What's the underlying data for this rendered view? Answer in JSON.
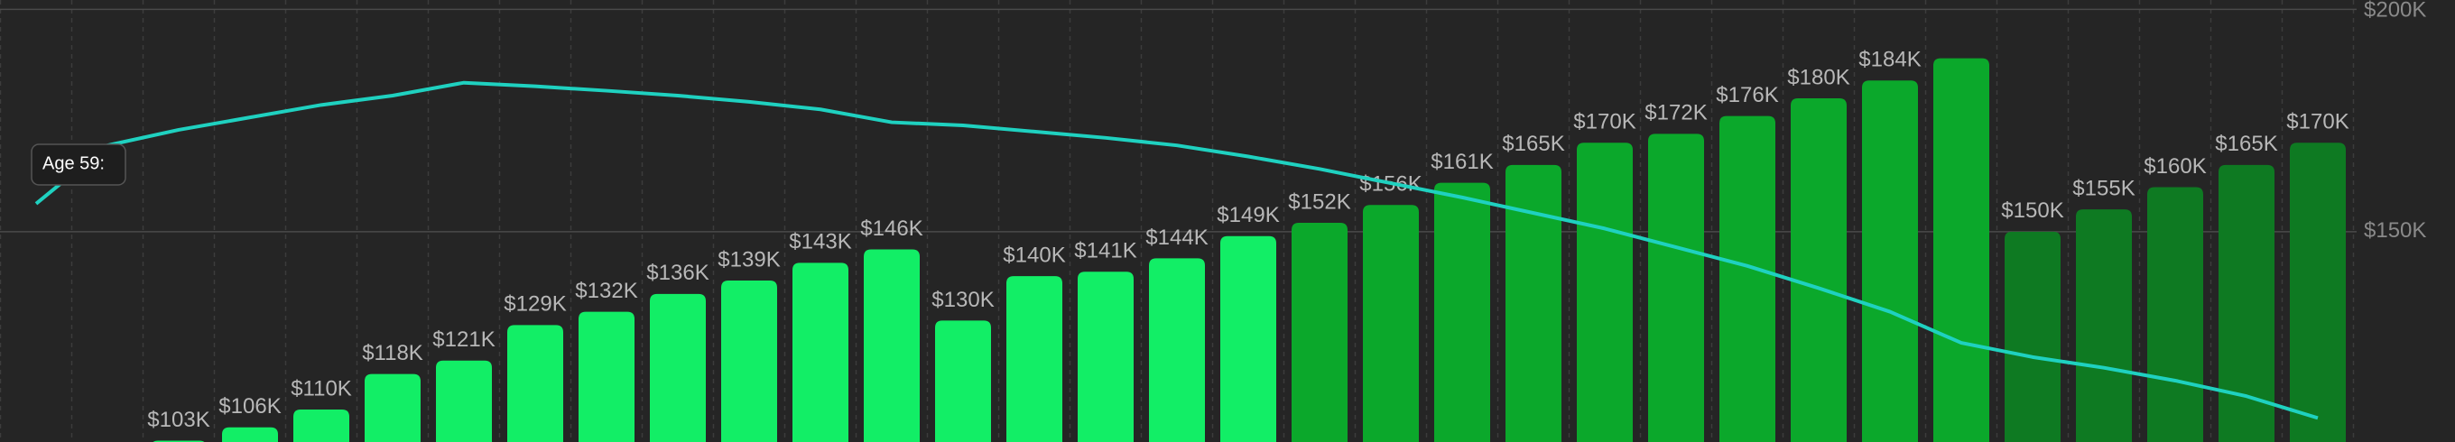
{
  "chart_data": {
    "type": "bar",
    "values": [
      null,
      null,
      103000,
      106000,
      110000,
      118000,
      121000,
      129000,
      132000,
      136000,
      139000,
      143000,
      146000,
      130000,
      140000,
      141000,
      144000,
      149000,
      152000,
      156000,
      161000,
      165000,
      170000,
      172000,
      176000,
      180000,
      184000,
      189000,
      150000,
      155000,
      160000,
      165000,
      170000
    ],
    "value_labels": [
      null,
      null,
      "$103K",
      "$106K",
      "$110K",
      "$118K",
      "$121K",
      "$129K",
      "$132K",
      "$136K",
      "$139K",
      "$143K",
      "$146K",
      "$130K",
      "$140K",
      "$141K",
      "$144K",
      "$149K",
      "$152K",
      "$156K",
      "$161K",
      "$165K",
      "$170K",
      "$172K",
      "$176K",
      "$180K",
      "$184K",
      null,
      "$150K",
      "$155K",
      "$160K",
      "$165K",
      "$170K"
    ],
    "colors": [
      "#12ee66",
      "#12ee66",
      "#12ee66",
      "#12ee66",
      "#12ee66",
      "#12ee66",
      "#12ee66",
      "#12ee66",
      "#12ee66",
      "#12ee66",
      "#12ee66",
      "#12ee66",
      "#12ee66",
      "#12ee66",
      "#12ee66",
      "#12ee66",
      "#12ee66",
      "#12ee66",
      "#0ba82b",
      "#0ba82b",
      "#0ba82b",
      "#0ba82b",
      "#0ba82b",
      "#0ba82b",
      "#0ba82b",
      "#0ba82b",
      "#0ba82b",
      "#0ba82b",
      "#0e7a22",
      "#0e7a22",
      "#0e7a22",
      "#0e7a22",
      "#0e7a22"
    ],
    "line": {
      "color": "#1fd1c0",
      "values": [
        156300,
        169400,
        172900,
        175700,
        178500,
        180600,
        183500,
        182700,
        181700,
        180600,
        179200,
        177500,
        174600,
        173900,
        172500,
        171100,
        169400,
        166900,
        164100,
        160900,
        157700,
        154200,
        150700,
        146500,
        142300,
        137300,
        132000,
        125000,
        121800,
        119400,
        116500,
        113000,
        108100
      ]
    },
    "ylim": [
      102700,
      202100
    ],
    "yticks": [
      {
        "value": 150000,
        "label": "$150K"
      },
      {
        "value": 200000,
        "label": "$200K"
      }
    ],
    "grid": true,
    "tooltip": "Age 59:"
  }
}
